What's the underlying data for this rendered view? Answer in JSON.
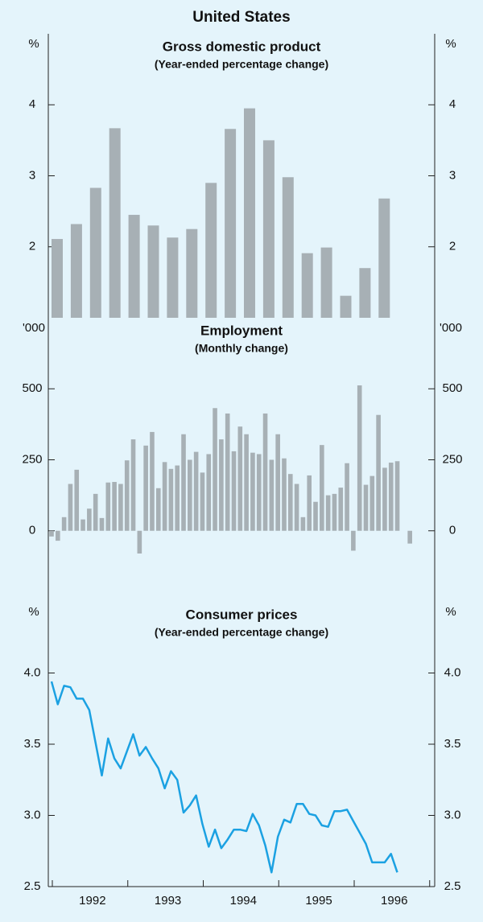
{
  "title": "United States",
  "chart_data": [
    {
      "type": "bar",
      "title": "Gross domestic product",
      "subtitle": "(Year-ended percentage change)",
      "unit": "%",
      "values": [
        2.11,
        2.32,
        2.83,
        3.67,
        2.45,
        2.3,
        2.13,
        2.25,
        2.9,
        3.66,
        3.95,
        3.5,
        2.98,
        1.91,
        1.99,
        1.31,
        1.7,
        2.68
      ],
      "color": "#a7b0b5",
      "ylim": [
        1,
        5
      ],
      "yticks": [
        2,
        3,
        4
      ]
    },
    {
      "type": "bar",
      "title": "Employment",
      "subtitle": "(Monthly change)",
      "unit": "'000",
      "values": [
        -20,
        -35,
        48,
        165,
        215,
        40,
        78,
        130,
        45,
        170,
        172,
        165,
        248,
        322,
        -80,
        300,
        348,
        150,
        242,
        218,
        230,
        340,
        250,
        278,
        205,
        270,
        432,
        322,
        413,
        280,
        367,
        340,
        275,
        270,
        413,
        250,
        340,
        255,
        200,
        165,
        48,
        195,
        102,
        302,
        125,
        130,
        152,
        238,
        -70,
        512,
        162,
        193,
        408,
        222,
        240,
        245,
        null,
        -45
      ],
      "color": "#a7b0b5",
      "ylim": [
        -250,
        750
      ],
      "yticks": [
        0,
        250,
        500
      ]
    },
    {
      "type": "line",
      "title": "Consumer prices",
      "subtitle": "(Year-ended percentage change)",
      "unit": "%",
      "categories": [
        null,
        null,
        null,
        null,
        null,
        null,
        "1992",
        null,
        null,
        null,
        null,
        null,
        null,
        null,
        null,
        null,
        null,
        null,
        "1993",
        null,
        null,
        null,
        null,
        null,
        null,
        null,
        null,
        null,
        null,
        null,
        "1994",
        null,
        null,
        null,
        null,
        null,
        null,
        null,
        null,
        null,
        null,
        null,
        "1995",
        null,
        null,
        null,
        null,
        null,
        null,
        null,
        null,
        null,
        null,
        null,
        "1996",
        null
      ],
      "values": [
        3.94,
        3.78,
        3.91,
        3.9,
        3.82,
        3.82,
        3.74,
        3.51,
        3.28,
        3.54,
        3.4,
        3.33,
        3.45,
        3.57,
        3.42,
        3.48,
        3.4,
        3.33,
        3.19,
        3.31,
        3.25,
        3.02,
        3.07,
        3.14,
        2.94,
        2.78,
        2.9,
        2.77,
        2.83,
        2.9,
        2.9,
        2.89,
        3.01,
        2.93,
        2.79,
        2.6,
        2.85,
        2.97,
        2.95,
        3.08,
        3.08,
        3.01,
        3.0,
        2.93,
        2.92,
        3.03,
        3.03,
        3.04,
        2.96,
        2.88,
        2.8,
        2.67,
        2.67,
        2.67,
        2.73,
        2.6
      ],
      "color": "#1ba1e2",
      "ylim": [
        2.5,
        4.5
      ],
      "yticks": [
        {
          "value": 2.5,
          "label": "2.5"
        },
        {
          "value": 3,
          "label": "3.0"
        },
        {
          "value": 3.5,
          "label": "3.5"
        },
        {
          "value": 4,
          "label": "4.0"
        }
      ]
    }
  ]
}
